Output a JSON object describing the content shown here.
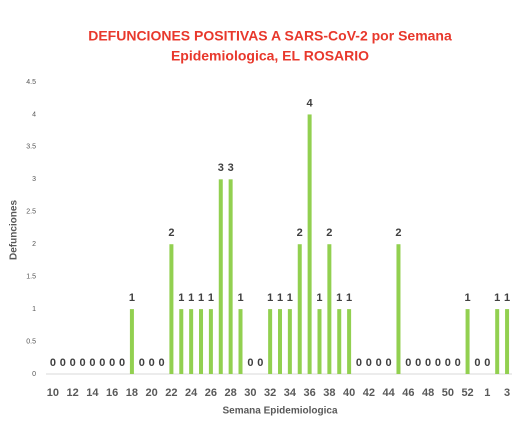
{
  "chart_data": {
    "type": "bar",
    "title": [
      "DEFUNCIONES POSITIVAS A SARS-CoV-2 por Semana",
      "Epidemiologica,  EL ROSARIO"
    ],
    "x_label": "Semana Epidemiologica",
    "y_label": "Defunciones",
    "categories": [
      10,
      null,
      12,
      null,
      14,
      null,
      16,
      null,
      18,
      null,
      20,
      null,
      22,
      null,
      24,
      null,
      26,
      null,
      28,
      null,
      30,
      null,
      32,
      null,
      34,
      null,
      36,
      null,
      38,
      null,
      40,
      null,
      42,
      null,
      44,
      null,
      46,
      null,
      48,
      null,
      50,
      null,
      52,
      null,
      1,
      null,
      3
    ],
    "values": [
      0,
      0,
      0,
      0,
      0,
      0,
      0,
      0,
      1,
      0,
      0,
      0,
      2,
      1,
      1,
      1,
      1,
      3,
      3,
      1,
      0,
      0,
      1,
      1,
      1,
      2,
      4,
      1,
      2,
      1,
      1,
      0,
      0,
      0,
      0,
      2,
      0,
      0,
      0,
      0,
      0,
      0,
      1,
      0,
      0,
      1,
      1
    ],
    "color": "#92d050",
    "ylim": [
      0,
      4.5
    ],
    "yticks": [
      0,
      0.5,
      1,
      1.5,
      2,
      2.5,
      3,
      3.5,
      4,
      4.5
    ],
    "grid": false
  }
}
